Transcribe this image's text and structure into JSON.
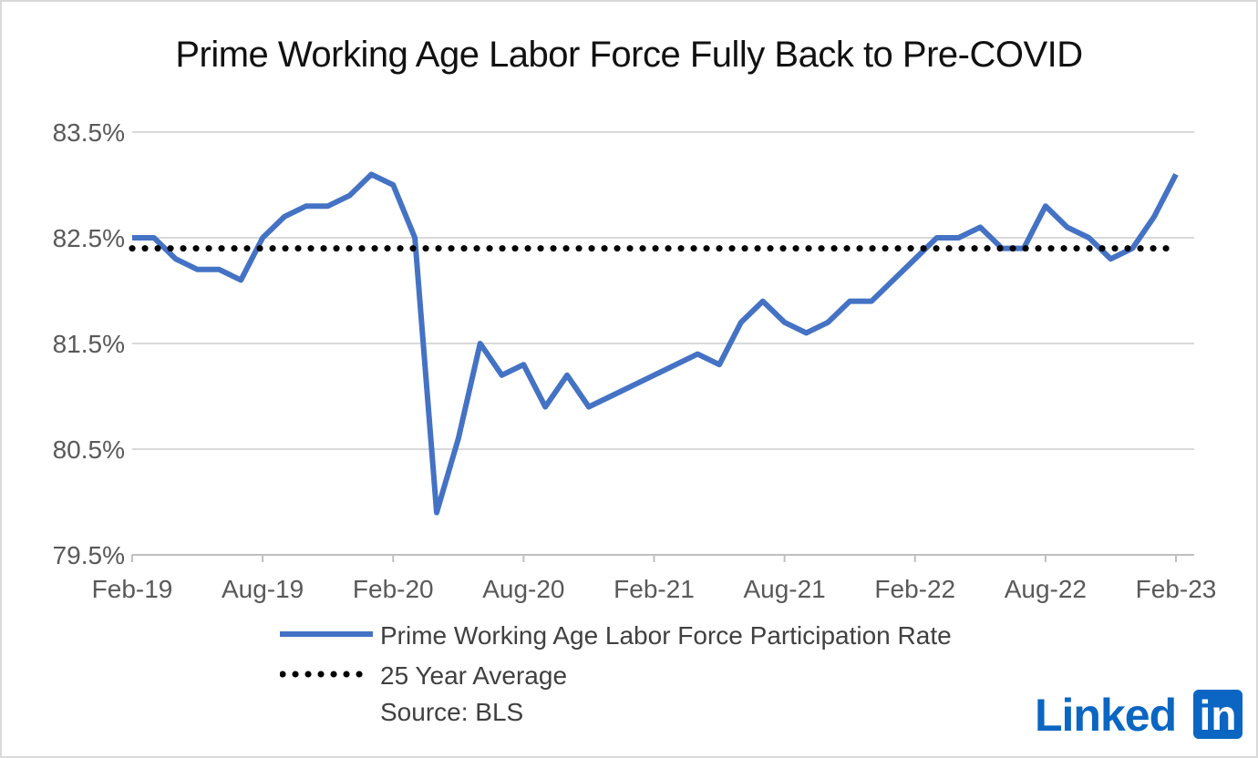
{
  "brand": {
    "logo_word": "Linked",
    "logo_box": "in",
    "logo_color": "#0a66c2"
  },
  "source": "Source: BLS",
  "legend": {
    "series1": "Prime Working Age Labor Force Participation Rate",
    "series2": "25 Year Average"
  },
  "colors": {
    "line": "#4472c4",
    "average": "#000000",
    "grid": "#d9d9d9",
    "axis_text": "#595959"
  },
  "chart_data": {
    "type": "line",
    "title": "Prime Working Age Labor Force Fully Back to Pre-COVID",
    "xlabel": "",
    "ylabel": "",
    "ylim": [
      79.5,
      83.5
    ],
    "y_ticks": [
      79.5,
      80.5,
      81.5,
      82.5,
      83.5
    ],
    "y_tick_labels": [
      "79.5%",
      "80.5%",
      "81.5%",
      "82.5%",
      "83.5%"
    ],
    "x_tick_labels": [
      "Feb-19",
      "Aug-19",
      "Feb-20",
      "Aug-20",
      "Feb-21",
      "Aug-21",
      "Feb-22",
      "Aug-22",
      "Feb-23"
    ],
    "x_tick_indices": [
      0,
      6,
      12,
      18,
      24,
      30,
      36,
      42,
      48
    ],
    "grid": true,
    "legend_position": "bottom",
    "x": [
      "Feb-19",
      "Mar-19",
      "Apr-19",
      "May-19",
      "Jun-19",
      "Jul-19",
      "Aug-19",
      "Sep-19",
      "Oct-19",
      "Nov-19",
      "Dec-19",
      "Jan-20",
      "Feb-20",
      "Mar-20",
      "Apr-20",
      "May-20",
      "Jun-20",
      "Jul-20",
      "Aug-20",
      "Sep-20",
      "Oct-20",
      "Nov-20",
      "Dec-20",
      "Jan-21",
      "Feb-21",
      "Mar-21",
      "Apr-21",
      "May-21",
      "Jun-21",
      "Jul-21",
      "Aug-21",
      "Sep-21",
      "Oct-21",
      "Nov-21",
      "Dec-21",
      "Jan-22",
      "Feb-22",
      "Mar-22",
      "Apr-22",
      "May-22",
      "Jun-22",
      "Jul-22",
      "Aug-22",
      "Sep-22",
      "Oct-22",
      "Nov-22",
      "Dec-22",
      "Jan-23",
      "Feb-23"
    ],
    "series": [
      {
        "name": "Prime Working Age Labor Force Participation Rate",
        "style": "solid",
        "values": [
          82.5,
          82.5,
          82.3,
          82.2,
          82.2,
          82.1,
          82.5,
          82.7,
          82.8,
          82.8,
          82.9,
          83.1,
          83.0,
          82.5,
          79.9,
          80.6,
          81.5,
          81.2,
          81.3,
          80.9,
          81.2,
          80.9,
          81.0,
          81.1,
          81.2,
          81.3,
          81.4,
          81.3,
          81.7,
          81.9,
          81.7,
          81.6,
          81.7,
          81.9,
          81.9,
          82.1,
          82.3,
          82.5,
          82.5,
          82.6,
          82.4,
          82.4,
          82.8,
          82.6,
          82.5,
          82.3,
          82.4,
          82.7,
          83.1
        ]
      },
      {
        "name": "25 Year Average",
        "style": "dotted",
        "values": [
          82.4,
          82.4,
          82.4,
          82.4,
          82.4,
          82.4,
          82.4,
          82.4,
          82.4,
          82.4,
          82.4,
          82.4,
          82.4,
          82.4,
          82.4,
          82.4,
          82.4,
          82.4,
          82.4,
          82.4,
          82.4,
          82.4,
          82.4,
          82.4,
          82.4,
          82.4,
          82.4,
          82.4,
          82.4,
          82.4,
          82.4,
          82.4,
          82.4,
          82.4,
          82.4,
          82.4,
          82.4,
          82.4,
          82.4,
          82.4,
          82.4,
          82.4,
          82.4,
          82.4,
          82.4,
          82.4,
          82.4,
          82.4,
          82.4
        ]
      }
    ]
  }
}
